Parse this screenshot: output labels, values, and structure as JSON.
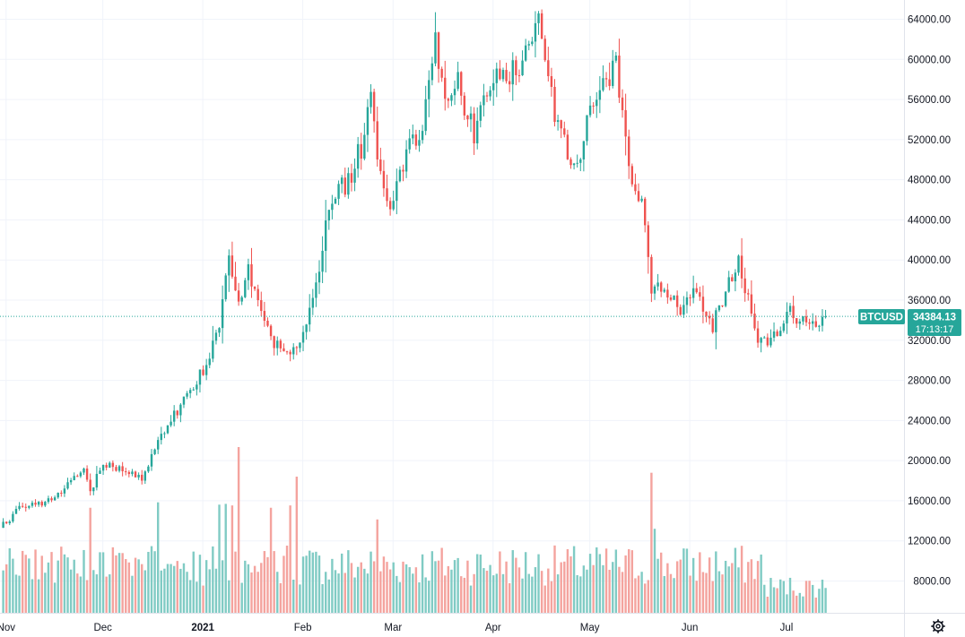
{
  "chart_data": {
    "type": "candlestick",
    "symbol": "BTCUSD",
    "last_price": "34384.13",
    "countdown": "17:13:17",
    "last_value": 34384.13,
    "ylim": [
      8000,
      64000
    ],
    "y_ticks": [
      "64000.00",
      "60000.00",
      "56000.00",
      "52000.00",
      "48000.00",
      "44000.00",
      "40000.00",
      "36000.00",
      "32000.00",
      "28000.00",
      "24000.00",
      "20000.00",
      "16000.00",
      "12000.00",
      "8000.00"
    ],
    "y_tick_values": [
      64000,
      60000,
      56000,
      52000,
      48000,
      44000,
      40000,
      36000,
      32000,
      28000,
      24000,
      20000,
      16000,
      12000,
      8000
    ],
    "x_ticks": [
      {
        "label": "Nov",
        "bold": false,
        "month": "2020-11"
      },
      {
        "label": "Dec",
        "bold": false,
        "month": "2020-12"
      },
      {
        "label": "2021",
        "bold": true,
        "month": "2021-01"
      },
      {
        "label": "Feb",
        "bold": false,
        "month": "2021-02"
      },
      {
        "label": "Mar",
        "bold": false,
        "month": "2021-03"
      },
      {
        "label": "Apr",
        "bold": false,
        "month": "2021-04"
      },
      {
        "label": "May",
        "bold": false,
        "month": "2021-05"
      },
      {
        "label": "Jun",
        "bold": false,
        "month": "2021-06"
      },
      {
        "label": "Jul",
        "bold": false,
        "month": "2021-07"
      }
    ],
    "close_keypoints": [
      [
        "2020-10-29",
        13300
      ],
      [
        "2020-11-05",
        15500
      ],
      [
        "2020-11-14",
        16000
      ],
      [
        "2020-11-24",
        19000
      ],
      [
        "2020-11-26",
        17000
      ],
      [
        "2020-11-30",
        19600
      ],
      [
        "2020-12-07",
        19200
      ],
      [
        "2020-12-12",
        18200
      ],
      [
        "2020-12-16",
        21300
      ],
      [
        "2020-12-20",
        23500
      ],
      [
        "2020-12-26",
        26500
      ],
      [
        "2021-01-01",
        29500
      ],
      [
        "2021-01-05",
        33500
      ],
      [
        "2021-01-08",
        40500
      ],
      [
        "2021-01-11",
        35500
      ],
      [
        "2021-01-14",
        39000
      ],
      [
        "2021-01-21",
        32000
      ],
      [
        "2021-01-27",
        30800
      ],
      [
        "2021-01-31",
        33000
      ],
      [
        "2021-02-04",
        37500
      ],
      [
        "2021-02-08",
        46200
      ],
      [
        "2021-02-13",
        47200
      ],
      [
        "2021-02-18",
        51500
      ],
      [
        "2021-02-21",
        57500
      ],
      [
        "2021-02-23",
        49500
      ],
      [
        "2021-02-28",
        45000
      ],
      [
        "2021-03-02",
        49000
      ],
      [
        "2021-03-09",
        54000
      ],
      [
        "2021-03-13",
        61000
      ],
      [
        "2021-03-16",
        55500
      ],
      [
        "2021-03-20",
        58000
      ],
      [
        "2021-03-25",
        52000
      ],
      [
        "2021-04-01",
        58800
      ],
      [
        "2021-04-08",
        58100
      ],
      [
        "2021-04-13",
        63500
      ],
      [
        "2021-04-15",
        62900
      ],
      [
        "2021-04-18",
        56200
      ],
      [
        "2021-04-23",
        49800
      ],
      [
        "2021-04-25",
        49000
      ],
      [
        "2021-05-03",
        57200
      ],
      [
        "2021-05-08",
        58900
      ],
      [
        "2021-05-10",
        55800
      ],
      [
        "2021-05-12",
        49200
      ],
      [
        "2021-05-15",
        46400
      ],
      [
        "2021-05-17",
        43500
      ],
      [
        "2021-05-19",
        37000
      ],
      [
        "2021-05-22",
        37500
      ],
      [
        "2021-05-28",
        35000
      ],
      [
        "2021-06-01",
        36700
      ],
      [
        "2021-06-07",
        33500
      ],
      [
        "2021-06-15",
        40000
      ],
      [
        "2021-06-21",
        31600
      ],
      [
        "2021-06-26",
        32300
      ],
      [
        "2021-06-30",
        35000
      ],
      [
        "2021-07-05",
        33800
      ],
      [
        "2021-07-09",
        33800
      ],
      [
        "2021-07-12",
        34384
      ]
    ],
    "volume_spikes": [
      [
        "2021-01-11",
        21300
      ],
      [
        "2021-05-19",
        18000
      ],
      [
        "2021-01-29",
        17500
      ],
      [
        "2020-12-17",
        14200
      ],
      [
        "2021-01-21",
        13500
      ],
      [
        "2021-01-09",
        13800
      ],
      [
        "2021-01-07",
        14000
      ],
      [
        "2021-01-05",
        13900
      ],
      [
        "2021-01-27",
        13800
      ],
      [
        "2020-11-26",
        13500
      ],
      [
        "2021-02-23",
        12000
      ],
      [
        "2021-05-20",
        10800
      ]
    ],
    "colors": {
      "up": "#26a69a",
      "down": "#ef5350",
      "up_volume": "#80cbc4",
      "down_volume": "#f4a39e",
      "grid": "#f0f3fa",
      "badge": "#26a69a",
      "axis_border": "#e0e3eb"
    },
    "settings_icon": "gear-icon"
  }
}
